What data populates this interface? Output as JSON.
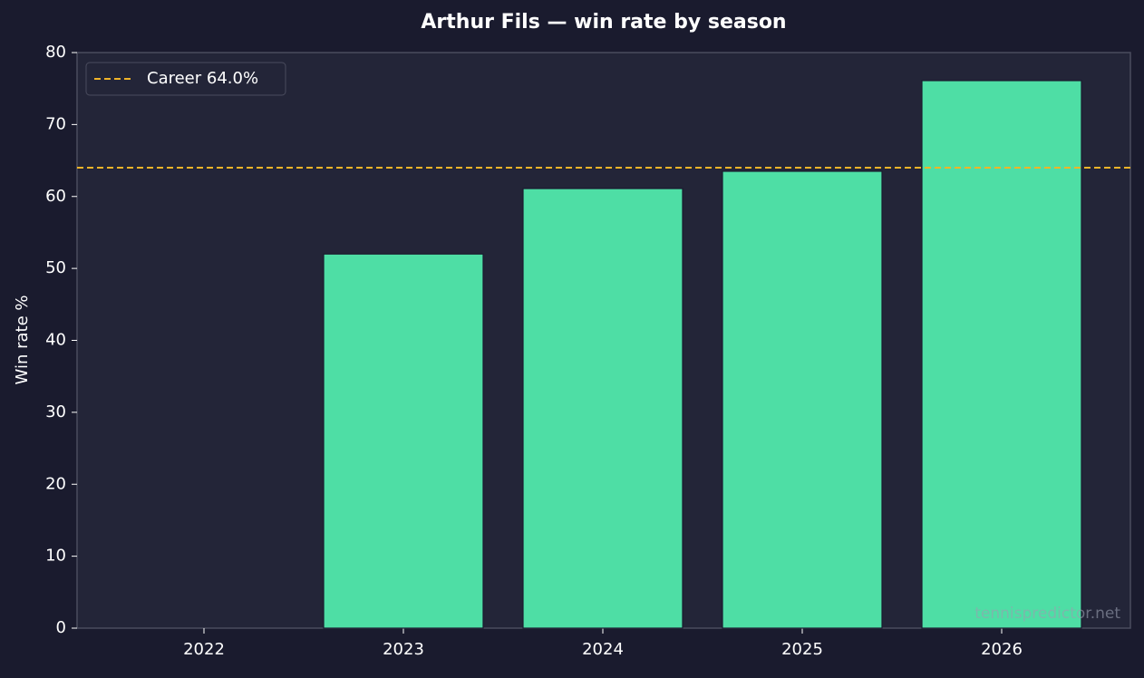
{
  "chart_data": {
    "type": "bar",
    "title": "Arthur Fils — win rate by season",
    "y_label": "Win rate %",
    "categories": [
      "2022",
      "2023",
      "2024",
      "2025",
      "2026"
    ],
    "values": [
      0,
      52,
      61.1,
      63.5,
      76.1
    ],
    "color": "#4edea5",
    "ylim": [
      0,
      80
    ],
    "yticks": [
      0,
      10,
      20,
      30,
      40,
      50,
      60,
      70,
      80
    ],
    "reference_line": {
      "value": 64.0,
      "label": "Career 64.0%",
      "color": "#f0b429"
    },
    "legend": "upper-left",
    "watermark": "tennispredictor.net"
  }
}
